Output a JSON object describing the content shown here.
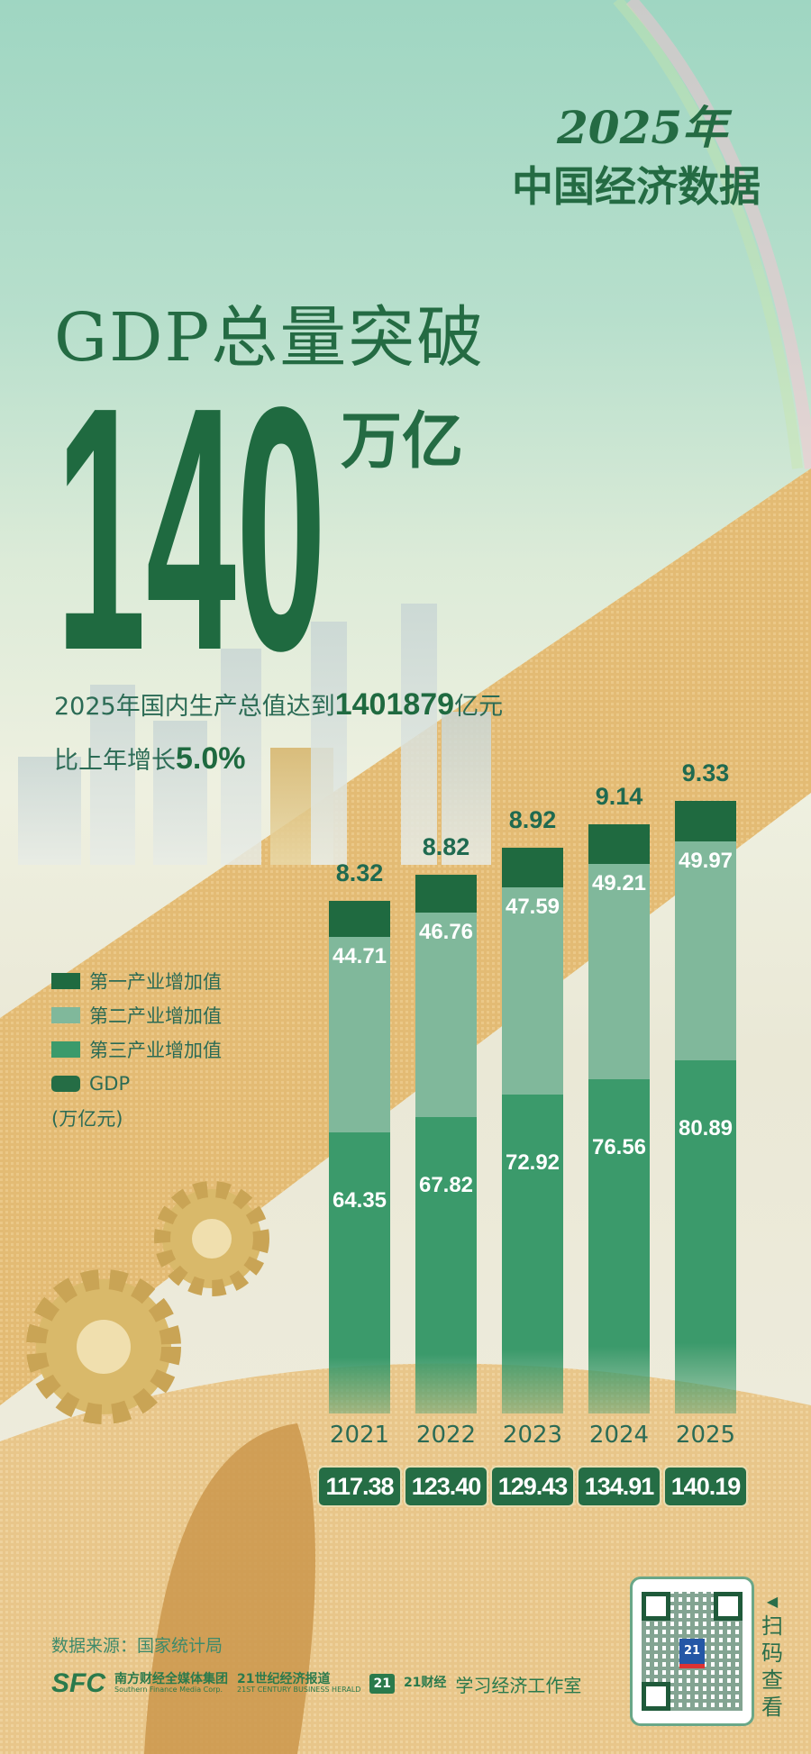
{
  "header": {
    "series_year": "2025年",
    "series_title": "中国经济数据"
  },
  "headline": {
    "line1": "GDP总量突破",
    "number": "140",
    "unit": "万亿"
  },
  "summary": {
    "line1_prefix": "2025年国内生产总值达到",
    "line1_value": "1401879",
    "line1_suffix": "亿元",
    "line2_prefix": "比上年增长",
    "line2_value": "5.0%"
  },
  "legend": {
    "items": [
      "第一产业增加值",
      "第二产业增加值",
      "第三产业增加值",
      "GDP"
    ],
    "unit": "(万亿元)"
  },
  "colors": {
    "primary": "#1f6a40",
    "secondary": "#80b89b",
    "tertiary": "#3b9a6b",
    "gdp": "#256d45"
  },
  "chart_data": {
    "type": "bar",
    "stacked": true,
    "categories": [
      "2021",
      "2022",
      "2023",
      "2024",
      "2025"
    ],
    "series": [
      {
        "name": "第三产业增加值",
        "values": [
          64.35,
          67.82,
          72.92,
          76.56,
          80.89
        ]
      },
      {
        "name": "第二产业增加值",
        "values": [
          44.71,
          46.76,
          47.59,
          49.21,
          49.97
        ]
      },
      {
        "name": "第一产业增加值",
        "values": [
          8.32,
          8.82,
          8.92,
          9.14,
          9.33
        ]
      }
    ],
    "totals_name": "GDP",
    "totals": [
      "117.38",
      "123.40",
      "129.43",
      "134.91",
      "140.19"
    ],
    "ylabel": "万亿元"
  },
  "footer": {
    "source": "数据来源：国家统计局",
    "logos": {
      "sfc": "SFC",
      "sfc_cn": "南方财经全媒体集团",
      "sfc_en": "Southern Finance Media Corp.",
      "herald_cn": "21世纪经济报道",
      "herald_en": "21ST CENTURY BUSINESS HERALD",
      "caijing_badge": "21",
      "caijing": "21财经",
      "studio": "学习经济工作室"
    },
    "qr_badge": "21",
    "scan": "扫码查看"
  }
}
